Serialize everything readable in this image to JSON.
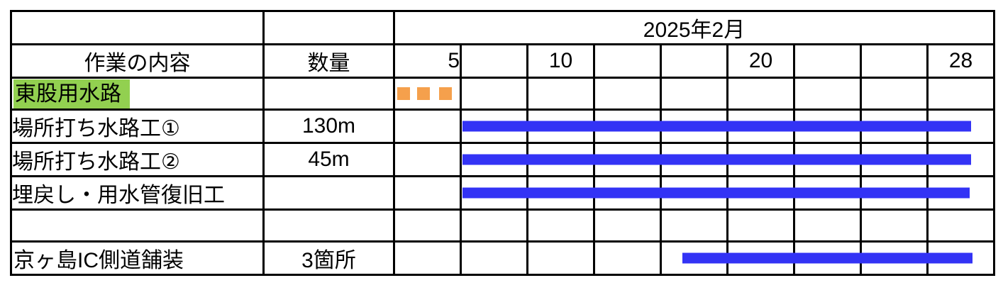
{
  "header": {
    "month_label": "2025年2月",
    "task_col_label": "作業の内容",
    "qty_col_label": "数量",
    "date_labels": [
      "5",
      "",
      "10",
      "",
      "",
      "20",
      "",
      "",
      "28"
    ]
  },
  "colors": {
    "bar_blue": "#3333f5",
    "marker_orange": "#f5a04c",
    "highlight_green": "#92d050",
    "highlight_yellow": "#ffff00",
    "grid_black": "#000000",
    "background": "#ffffff"
  },
  "chart_data": {
    "type": "gantt",
    "title": "2025年2月",
    "x_axis": {
      "month": "2025年2月",
      "day_tick_labels": [
        5,
        10,
        20,
        28
      ],
      "timeline_columns": 9,
      "grid": true
    },
    "rows": [
      {
        "label": "東股用水路",
        "qty": "",
        "highlight": "green",
        "marker": {
          "type": "dashed-start",
          "unit": "timeline-columns",
          "width": 0.2,
          "positions": [
            0.03,
            0.34,
            0.68
          ]
        }
      },
      {
        "label": "場所打ち水路工①",
        "qty": "130m",
        "bar": {
          "unit": "timeline-columns",
          "start": 1.04,
          "end": 8.92
        }
      },
      {
        "label": "場所打ち水路工②",
        "qty": "45m",
        "bar": {
          "unit": "timeline-columns",
          "start": 1.04,
          "end": 8.92
        }
      },
      {
        "label": "埋戻し・用水管復旧工",
        "qty": "",
        "bar": {
          "unit": "timeline-columns",
          "start": 1.04,
          "end": 8.9
        }
      },
      {
        "label": "",
        "qty": ""
      },
      {
        "label": "京ヶ島IC側道舗装",
        "qty": "3箇所",
        "highlight": "yellow",
        "bar": {
          "unit": "timeline-columns",
          "start": 4.45,
          "end": 8.95
        }
      }
    ]
  }
}
